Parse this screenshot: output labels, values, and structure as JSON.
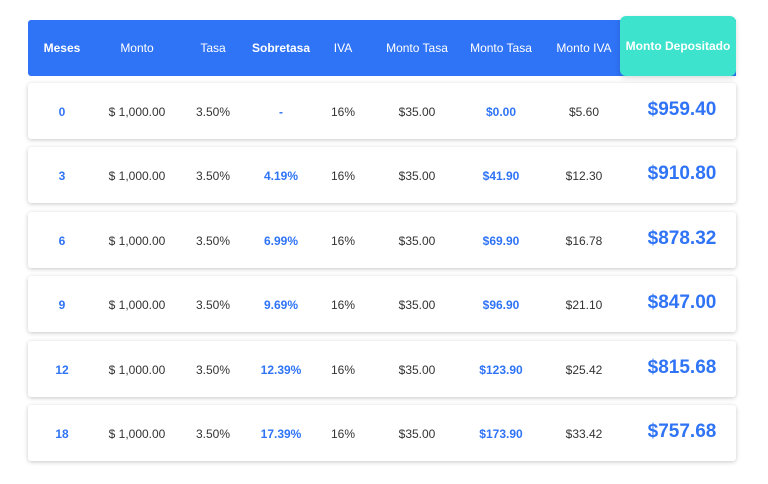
{
  "table": {
    "headers": {
      "meses": "Meses",
      "monto": "Monto",
      "tasa": "Tasa",
      "sobretasa": "Sobretasa",
      "iva": "IVA",
      "monto_tasa": "Monto Tasa",
      "monto_tasa_2": "Monto Tasa",
      "monto_iva": "Monto IVA",
      "monto_depositado": "Monto Depositado"
    },
    "rows": [
      {
        "meses": "0",
        "monto": "$ 1,000.00",
        "tasa": "3.50%",
        "sobretasa": "-",
        "iva": "16%",
        "monto_tasa": "$35.00",
        "monto_sobretasa": "$0.00",
        "monto_iva": "$5.60",
        "monto_depositado": "$959.40"
      },
      {
        "meses": "3",
        "monto": "$ 1,000.00",
        "tasa": "3.50%",
        "sobretasa": "4.19%",
        "iva": "16%",
        "monto_tasa": "$35.00",
        "monto_sobretasa": "$41.90",
        "monto_iva": "$12.30",
        "monto_depositado": "$910.80"
      },
      {
        "meses": "6",
        "monto": "$ 1,000.00",
        "tasa": "3.50%",
        "sobretasa": "6.99%",
        "iva": "16%",
        "monto_tasa": "$35.00",
        "monto_sobretasa": "$69.90",
        "monto_iva": "$16.78",
        "monto_depositado": "$878.32"
      },
      {
        "meses": "9",
        "monto": "$ 1,000.00",
        "tasa": "3.50%",
        "sobretasa": "9.69%",
        "iva": "16%",
        "monto_tasa": "$35.00",
        "monto_sobretasa": "$96.90",
        "monto_iva": "$21.10",
        "monto_depositado": "$847.00"
      },
      {
        "meses": "12",
        "monto": "$ 1,000.00",
        "tasa": "3.50%",
        "sobretasa": "12.39%",
        "iva": "16%",
        "monto_tasa": "$35.00",
        "monto_sobretasa": "$123.90",
        "monto_iva": "$25.42",
        "monto_depositado": "$815.68"
      },
      {
        "meses": "18",
        "monto": "$ 1,000.00",
        "tasa": "3.50%",
        "sobretasa": "17.39%",
        "iva": "16%",
        "monto_tasa": "$35.00",
        "monto_sobretasa": "$173.90",
        "monto_iva": "$33.42",
        "monto_depositado": "$757.68"
      }
    ]
  },
  "colors": {
    "header_blue": "#2f73f6",
    "deposit_teal": "#3de3cc",
    "accent_blue": "#2f73f6"
  }
}
